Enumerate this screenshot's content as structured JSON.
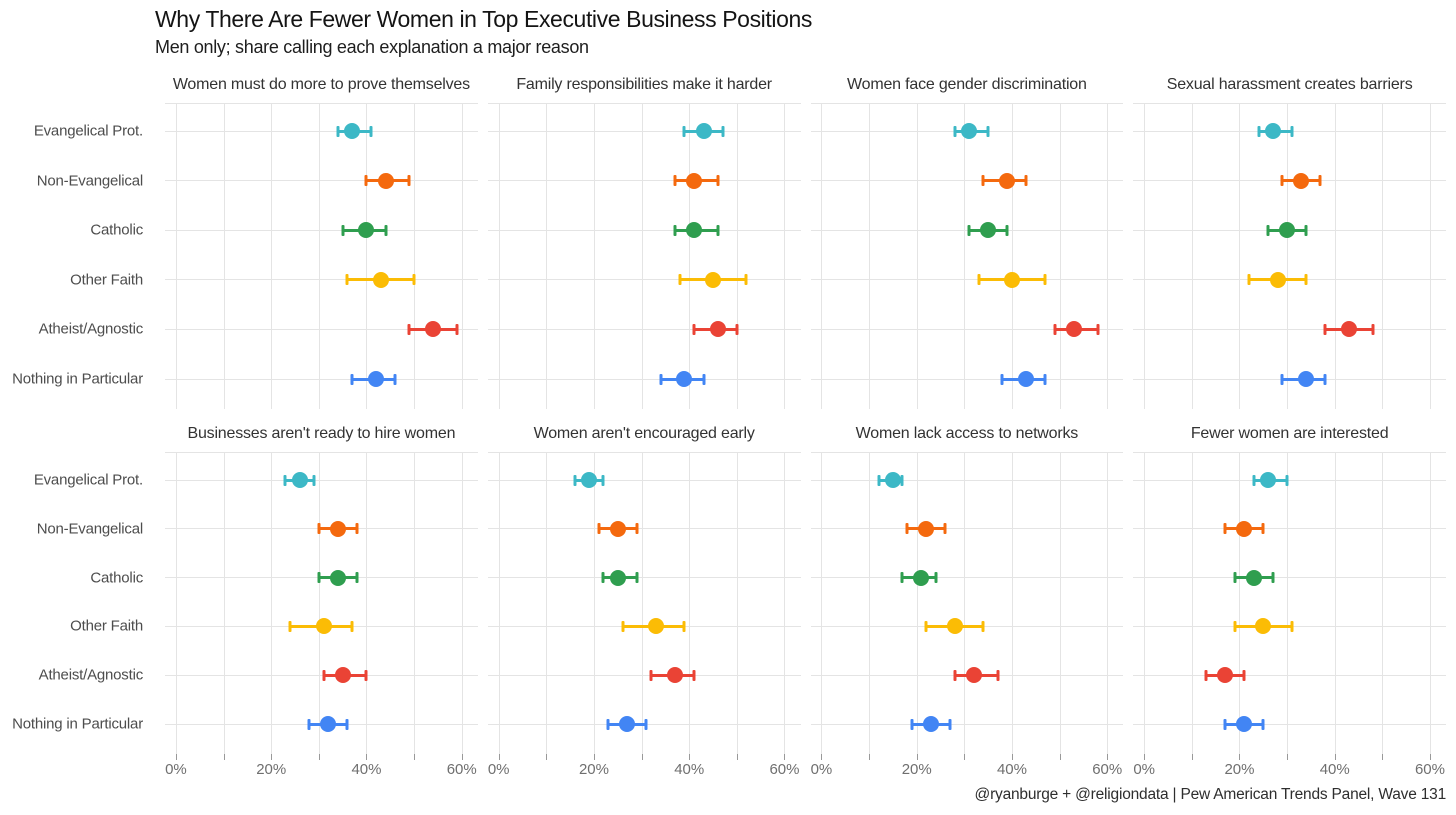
{
  "header": {
    "title": "Why There Are Fewer Women in Top Executive Business Positions",
    "subtitle": "Men only; share calling each explanation a major reason"
  },
  "footer": {
    "credit": "@ryanburge + @religiondata | Pew American Trends Panel, Wave 131"
  },
  "axis": {
    "x_tick_labels": [
      "0%",
      "20%",
      "40%",
      "60%"
    ],
    "x_tick_label_values": [
      0,
      20,
      40,
      60
    ],
    "x_gridline_values": [
      0,
      10,
      20,
      30,
      40,
      50,
      60
    ]
  },
  "colors": {
    "grid": "#e4e4e4",
    "tick": "#999999",
    "axis_text": "#6f6f6f",
    "series": [
      "#3CB8C6",
      "#F4690E",
      "#2F9E4F",
      "#FBBC05",
      "#EA4335",
      "#4285F4"
    ]
  },
  "chart_data": {
    "type": "scatter",
    "subtype": "dot-plot-with-error-bars",
    "title": "Why There Are Fewer Women in Top Executive Business Positions",
    "subtitle": "Men only; share calling each explanation a major reason",
    "xlabel": "",
    "ylabel": "",
    "xlim": [
      0,
      62
    ],
    "grid": "on",
    "legend": "none",
    "categories": [
      "Evangelical Prot.",
      "Non-Evangelical",
      "Catholic",
      "Other Faith",
      "Atheist/Agnostic",
      "Nothing in Particular"
    ],
    "units": "percent",
    "panels": [
      {
        "title": "Women must do more to prove themselves",
        "points": [
          {
            "v": 37,
            "lo": 34,
            "hi": 41
          },
          {
            "v": 44,
            "lo": 40,
            "hi": 49
          },
          {
            "v": 40,
            "lo": 35,
            "hi": 44
          },
          {
            "v": 43,
            "lo": 36,
            "hi": 50
          },
          {
            "v": 54,
            "lo": 49,
            "hi": 59
          },
          {
            "v": 42,
            "lo": 37,
            "hi": 46
          }
        ]
      },
      {
        "title": "Family responsibilities make it harder",
        "points": [
          {
            "v": 43,
            "lo": 39,
            "hi": 47
          },
          {
            "v": 41,
            "lo": 37,
            "hi": 46
          },
          {
            "v": 41,
            "lo": 37,
            "hi": 46
          },
          {
            "v": 45,
            "lo": 38,
            "hi": 52
          },
          {
            "v": 46,
            "lo": 41,
            "hi": 50
          },
          {
            "v": 39,
            "lo": 34,
            "hi": 43
          }
        ]
      },
      {
        "title": "Women face gender discrimination",
        "points": [
          {
            "v": 31,
            "lo": 28,
            "hi": 35
          },
          {
            "v": 39,
            "lo": 34,
            "hi": 43
          },
          {
            "v": 35,
            "lo": 31,
            "hi": 39
          },
          {
            "v": 40,
            "lo": 33,
            "hi": 47
          },
          {
            "v": 53,
            "lo": 49,
            "hi": 58
          },
          {
            "v": 43,
            "lo": 38,
            "hi": 47
          }
        ]
      },
      {
        "title": "Sexual harassment creates barriers",
        "points": [
          {
            "v": 27,
            "lo": 24,
            "hi": 31
          },
          {
            "v": 33,
            "lo": 29,
            "hi": 37
          },
          {
            "v": 30,
            "lo": 26,
            "hi": 34
          },
          {
            "v": 28,
            "lo": 22,
            "hi": 34
          },
          {
            "v": 43,
            "lo": 38,
            "hi": 48
          },
          {
            "v": 34,
            "lo": 29,
            "hi": 38
          }
        ]
      },
      {
        "title": "Businesses aren't ready to hire women",
        "points": [
          {
            "v": 26,
            "lo": 23,
            "hi": 29
          },
          {
            "v": 34,
            "lo": 30,
            "hi": 38
          },
          {
            "v": 34,
            "lo": 30,
            "hi": 38
          },
          {
            "v": 31,
            "lo": 24,
            "hi": 37
          },
          {
            "v": 35,
            "lo": 31,
            "hi": 40
          },
          {
            "v": 32,
            "lo": 28,
            "hi": 36
          }
        ]
      },
      {
        "title": "Women aren't encouraged early",
        "points": [
          {
            "v": 19,
            "lo": 16,
            "hi": 22
          },
          {
            "v": 25,
            "lo": 21,
            "hi": 29
          },
          {
            "v": 25,
            "lo": 22,
            "hi": 29
          },
          {
            "v": 33,
            "lo": 26,
            "hi": 39
          },
          {
            "v": 37,
            "lo": 32,
            "hi": 41
          },
          {
            "v": 27,
            "lo": 23,
            "hi": 31
          }
        ]
      },
      {
        "title": "Women lack access to networks",
        "points": [
          {
            "v": 15,
            "lo": 12,
            "hi": 17
          },
          {
            "v": 22,
            "lo": 18,
            "hi": 26
          },
          {
            "v": 21,
            "lo": 17,
            "hi": 24
          },
          {
            "v": 28,
            "lo": 22,
            "hi": 34
          },
          {
            "v": 32,
            "lo": 28,
            "hi": 37
          },
          {
            "v": 23,
            "lo": 19,
            "hi": 27
          }
        ]
      },
      {
        "title": "Fewer women are interested",
        "points": [
          {
            "v": 26,
            "lo": 23,
            "hi": 30
          },
          {
            "v": 21,
            "lo": 17,
            "hi": 25
          },
          {
            "v": 23,
            "lo": 19,
            "hi": 27
          },
          {
            "v": 25,
            "lo": 19,
            "hi": 31
          },
          {
            "v": 17,
            "lo": 13,
            "hi": 21
          },
          {
            "v": 21,
            "lo": 17,
            "hi": 25
          }
        ]
      }
    ]
  }
}
